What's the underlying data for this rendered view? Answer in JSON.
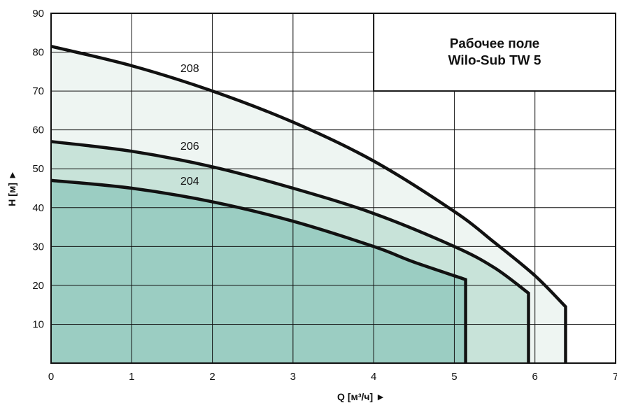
{
  "chart_data": {
    "type": "area",
    "title_lines": [
      "Рабочее поле",
      "Wilo-Sub TW 5"
    ],
    "xlabel": "Q [м³/ч] ►",
    "ylabel": "H [м] ►",
    "xlim": [
      0,
      7
    ],
    "ylim": [
      0,
      90
    ],
    "x_ticks": [
      0,
      1,
      2,
      3,
      4,
      5,
      6,
      7
    ],
    "y_ticks": [
      10,
      20,
      30,
      40,
      50,
      60,
      70,
      80,
      90
    ],
    "grid": true,
    "series": [
      {
        "name": "208",
        "fill": "#eef5f2",
        "points": [
          [
            0,
            81.5
          ],
          [
            1,
            76.5
          ],
          [
            2,
            70
          ],
          [
            3,
            62
          ],
          [
            4,
            52
          ],
          [
            5,
            39
          ],
          [
            5.5,
            31
          ],
          [
            6,
            22.5
          ],
          [
            6.38,
            14.5
          ]
        ],
        "end_x": 6.38,
        "label_at": [
          1.5,
          76
        ]
      },
      {
        "name": "206",
        "fill": "#c8e3d9",
        "points": [
          [
            0,
            57
          ],
          [
            1,
            54.5
          ],
          [
            2,
            50.5
          ],
          [
            3,
            45
          ],
          [
            4,
            38.5
          ],
          [
            5,
            30
          ],
          [
            5.5,
            24.5
          ],
          [
            5.92,
            18
          ]
        ],
        "end_x": 5.92,
        "label_at": [
          1.5,
          56
        ]
      },
      {
        "name": "204",
        "fill": "#9bcdc2",
        "points": [
          [
            0,
            47
          ],
          [
            1,
            45
          ],
          [
            2,
            41.5
          ],
          [
            3,
            36.5
          ],
          [
            4,
            30
          ],
          [
            4.5,
            26
          ],
          [
            5.14,
            21.5
          ]
        ],
        "end_x": 5.14,
        "label_at": [
          1.5,
          47
        ]
      }
    ]
  }
}
